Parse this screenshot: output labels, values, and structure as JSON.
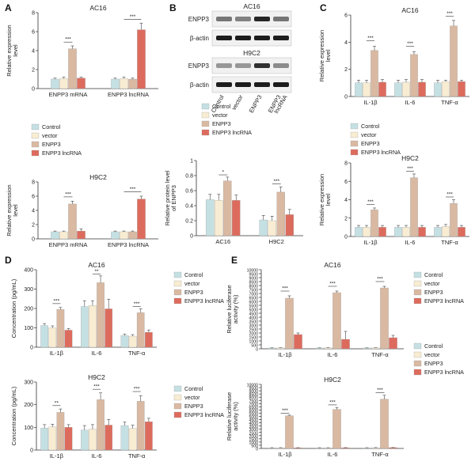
{
  "colors": {
    "control": "#c5e0e3",
    "vector": "#f8ecd2",
    "enpp3": "#d9b9a2",
    "lncrna": "#dd6b5d",
    "blot_bg": "#f1f1f1",
    "band": "#111111"
  },
  "legend": [
    "Control",
    "vector",
    "ENPP3",
    "ENPP3 lncRNA"
  ],
  "panel_B": {
    "label": "B",
    "blot_ac16": {
      "title": "AC16",
      "rows": [
        "ENPP3",
        "β-actin"
      ]
    },
    "blot_h9c2": {
      "title": "H9C2",
      "rows": [
        "ENPP3",
        "β-actin"
      ]
    },
    "lane_labels": [
      "Control",
      "vector",
      "ENPP3",
      "ENPP3 lncRNA"
    ]
  },
  "chart_data": [
    {
      "id": "A1",
      "panel": "A",
      "type": "bar",
      "title": "AC16",
      "ylabel": "Relative expression level",
      "ylim": [
        0,
        8
      ],
      "yticks": [
        0,
        2,
        4,
        6,
        8
      ],
      "categories": [
        "ENPP3 mRNA",
        "ENPP3 lncRNA"
      ],
      "series": [
        {
          "name": "Control",
          "values": [
            1.0,
            1.0
          ],
          "errors": [
            0.1,
            0.1
          ]
        },
        {
          "name": "vector",
          "values": [
            1.05,
            1.05
          ],
          "errors": [
            0.15,
            0.15
          ]
        },
        {
          "name": "ENPP3",
          "values": [
            4.2,
            1.0
          ],
          "errors": [
            0.3,
            0.1
          ]
        },
        {
          "name": "ENPP3 lncRNA",
          "values": [
            1.1,
            6.2
          ],
          "errors": [
            0.1,
            0.7
          ]
        }
      ],
      "annotations": [
        {
          "text": "***",
          "category": 0,
          "from": 1,
          "to": 2,
          "y": 4.9
        },
        {
          "text": "***",
          "category": 1,
          "from": 1,
          "to": 3,
          "y": 7.3
        }
      ]
    },
    {
      "id": "A2",
      "panel": "A",
      "type": "bar",
      "title": "H9C2",
      "ylabel": "Relative expression level",
      "ylim": [
        0,
        8
      ],
      "yticks": [
        0,
        2,
        4,
        6,
        8
      ],
      "categories": [
        "ENPP3 mRNA",
        "ENPP3 lncRNA"
      ],
      "series": [
        {
          "name": "Control",
          "values": [
            1.0,
            1.0
          ],
          "errors": [
            0.1,
            0.1
          ]
        },
        {
          "name": "vector",
          "values": [
            1.0,
            1.0
          ],
          "errors": [
            0.1,
            0.1
          ]
        },
        {
          "name": "ENPP3",
          "values": [
            4.9,
            1.0
          ],
          "errors": [
            0.4,
            0.1
          ]
        },
        {
          "name": "ENPP3 lncRNA",
          "values": [
            1.1,
            5.6
          ],
          "errors": [
            0.3,
            0.4
          ]
        }
      ],
      "annotations": [
        {
          "text": "***",
          "category": 0,
          "from": 1,
          "to": 2,
          "y": 5.9
        },
        {
          "text": "***",
          "category": 1,
          "from": 1,
          "to": 3,
          "y": 6.6
        }
      ]
    },
    {
      "id": "B1",
      "panel": "B",
      "type": "bar",
      "title": "",
      "ylabel": "Relative protein level of ENPP3",
      "ylim": [
        0,
        1.0
      ],
      "yticks": [
        0.0,
        0.2,
        0.4,
        0.6,
        0.8,
        1.0
      ],
      "categories": [
        "AC16",
        "H9C2"
      ],
      "series": [
        {
          "name": "Control",
          "values": [
            0.48,
            0.21
          ],
          "errors": [
            0.07,
            0.06
          ]
        },
        {
          "name": "vector",
          "values": [
            0.47,
            0.2
          ],
          "errors": [
            0.08,
            0.06
          ]
        },
        {
          "name": "ENPP3",
          "values": [
            0.73,
            0.58
          ],
          "errors": [
            0.05,
            0.07
          ]
        },
        {
          "name": "ENPP3 lncRNA",
          "values": [
            0.47,
            0.28
          ],
          "errors": [
            0.07,
            0.07
          ]
        }
      ],
      "annotations": [
        {
          "text": "*",
          "category": 0,
          "from": 1,
          "to": 2,
          "y": 0.81
        },
        {
          "text": "***",
          "category": 1,
          "from": 1,
          "to": 2,
          "y": 0.69
        }
      ]
    },
    {
      "id": "C1",
      "panel": "C",
      "type": "bar",
      "title": "AC16",
      "ylabel": "Relative expression level",
      "ylim": [
        0,
        6
      ],
      "yticks": [
        0,
        2,
        4,
        6
      ],
      "categories": [
        "IL-1β",
        "IL-6",
        "TNF-α"
      ],
      "series": [
        {
          "name": "Control",
          "values": [
            1.0,
            1.0,
            1.0
          ],
          "errors": [
            0.2,
            0.2,
            0.2
          ]
        },
        {
          "name": "vector",
          "values": [
            1.0,
            1.05,
            1.1
          ],
          "errors": [
            0.2,
            0.2,
            0.1
          ]
        },
        {
          "name": "ENPP3",
          "values": [
            3.4,
            3.1,
            5.2
          ],
          "errors": [
            0.3,
            0.2,
            0.4
          ]
        },
        {
          "name": "ENPP3 lncRNA",
          "values": [
            1.05,
            1.05,
            1.1
          ],
          "errors": [
            0.2,
            0.2,
            0.1
          ]
        }
      ],
      "annotations": [
        {
          "text": "***",
          "category": 0,
          "from": 1,
          "to": 2,
          "y": 4.1
        },
        {
          "text": "***",
          "category": 1,
          "from": 1,
          "to": 2,
          "y": 3.7
        },
        {
          "text": "***",
          "category": 2,
          "from": 1,
          "to": 2,
          "y": 5.9
        }
      ]
    },
    {
      "id": "C2",
      "panel": "C",
      "type": "bar",
      "title": "H9C2",
      "ylabel": "Relative expression level",
      "ylim": [
        0,
        8
      ],
      "yticks": [
        0,
        2,
        4,
        6,
        8
      ],
      "categories": [
        "IL-1β",
        "IL-6",
        "TNF-α"
      ],
      "series": [
        {
          "name": "Control",
          "values": [
            1.0,
            1.0,
            1.0
          ],
          "errors": [
            0.2,
            0.2,
            0.2
          ]
        },
        {
          "name": "vector",
          "values": [
            1.0,
            1.0,
            1.1
          ],
          "errors": [
            0.2,
            0.2,
            0.2
          ]
        },
        {
          "name": "ENPP3",
          "values": [
            2.9,
            6.4,
            3.6
          ],
          "errors": [
            0.2,
            0.4,
            0.4
          ]
        },
        {
          "name": "ENPP3 lncRNA",
          "values": [
            1.0,
            1.0,
            1.0
          ],
          "errors": [
            0.2,
            0.2,
            0.2
          ]
        }
      ],
      "annotations": [
        {
          "text": "***",
          "category": 0,
          "from": 1,
          "to": 2,
          "y": 3.5
        },
        {
          "text": "***",
          "category": 1,
          "from": 1,
          "to": 2,
          "y": 7.1
        },
        {
          "text": "***",
          "category": 2,
          "from": 1,
          "to": 2,
          "y": 4.3
        }
      ]
    },
    {
      "id": "D1",
      "panel": "D",
      "type": "bar",
      "title": "AC16",
      "ylabel": "Concentration (pg/mL)",
      "ylim": [
        0,
        400
      ],
      "yticks": [
        0,
        100,
        200,
        300,
        400
      ],
      "categories": [
        "IL-1β",
        "IL-6",
        "TNF-α"
      ],
      "series": [
        {
          "name": "Control",
          "values": [
            112,
            210,
            60
          ],
          "errors": [
            10,
            30,
            8
          ]
        },
        {
          "name": "vector",
          "values": [
            100,
            215,
            57
          ],
          "errors": [
            10,
            25,
            8
          ]
        },
        {
          "name": "ENPP3",
          "values": [
            195,
            333,
            178
          ],
          "errors": [
            10,
            35,
            20
          ]
        },
        {
          "name": "ENPP3 lncRNA",
          "values": [
            88,
            198,
            77
          ],
          "errors": [
            8,
            50,
            12
          ]
        }
      ],
      "annotations": [
        {
          "text": "***",
          "category": 0,
          "from": 1,
          "to": 2,
          "y": 225
        },
        {
          "text": "**",
          "category": 1,
          "from": 1,
          "to": 2,
          "y": 378
        },
        {
          "text": "***",
          "category": 2,
          "from": 1,
          "to": 2,
          "y": 210
        }
      ]
    },
    {
      "id": "D2",
      "panel": "D",
      "type": "bar",
      "title": "H9C2",
      "ylabel": "Concentration (pg/mL)",
      "ylim": [
        0,
        300
      ],
      "yticks": [
        0,
        100,
        200,
        300
      ],
      "categories": [
        "IL-1β",
        "IL-6",
        "TNF-α"
      ],
      "series": [
        {
          "name": "Control",
          "values": [
            97,
            88,
            108
          ],
          "errors": [
            15,
            20,
            15
          ]
        },
        {
          "name": "vector",
          "values": [
            102,
            92,
            95
          ],
          "errors": [
            12,
            20,
            15
          ]
        },
        {
          "name": "ENPP3",
          "values": [
            166,
            222,
            215
          ],
          "errors": [
            15,
            30,
            25
          ]
        },
        {
          "name": "ENPP3 lncRNA",
          "values": [
            100,
            110,
            125
          ],
          "errors": [
            12,
            25,
            15
          ]
        }
      ],
      "annotations": [
        {
          "text": "**",
          "category": 0,
          "from": 1,
          "to": 2,
          "y": 196
        },
        {
          "text": "***",
          "category": 1,
          "from": 1,
          "to": 2,
          "y": 268
        },
        {
          "text": "***",
          "category": 2,
          "from": 1,
          "to": 2,
          "y": 258
        }
      ]
    },
    {
      "id": "E1",
      "panel": "E",
      "type": "bar",
      "title": "AC16",
      "ylabel": "Relative luciferase activity (%)",
      "ylim": [
        0,
        10000
      ],
      "yticks": [
        0,
        500,
        1000,
        1500,
        2000,
        2500,
        3000,
        3500,
        4000,
        4500,
        5000,
        5500,
        6000,
        6500,
        7000,
        7500,
        8000,
        8500,
        9000,
        9500,
        10000
      ],
      "categories": [
        "IL-1β",
        "IL-6",
        "TNF-α"
      ],
      "series": [
        {
          "name": "Control",
          "values": [
            100,
            100,
            100
          ],
          "errors": [
            20,
            20,
            20
          ]
        },
        {
          "name": "vector",
          "values": [
            110,
            120,
            110
          ],
          "errors": [
            20,
            20,
            20
          ]
        },
        {
          "name": "ENPP3",
          "values": [
            6400,
            7100,
            7700
          ],
          "errors": [
            300,
            200,
            200
          ]
        },
        {
          "name": "ENPP3 lncRNA",
          "values": [
            1800,
            1200,
            1400
          ],
          "errors": [
            200,
            1000,
            300
          ]
        }
      ],
      "annotations": [
        {
          "text": "***",
          "category": 0,
          "from": 1,
          "to": 2,
          "y": 7300
        },
        {
          "text": "***",
          "category": 1,
          "from": 1,
          "to": 2,
          "y": 7900
        },
        {
          "text": "***",
          "category": 2,
          "from": 1,
          "to": 2,
          "y": 8500
        }
      ]
    },
    {
      "id": "E2",
      "panel": "E",
      "type": "bar",
      "title": "H9C2",
      "ylabel": "Relative luciferase activity (%)",
      "ylim": [
        0,
        10000
      ],
      "yticks": [
        0,
        500,
        1000,
        1500,
        2000,
        2500,
        3000,
        3500,
        4000,
        4500,
        5000,
        5500,
        6000,
        6500,
        7000,
        7500,
        8000,
        8500,
        9000,
        9500,
        10000
      ],
      "categories": [
        "IL-1β",
        "IL-6",
        "TNF-α"
      ],
      "series": [
        {
          "name": "Control",
          "values": [
            100,
            100,
            100
          ],
          "errors": [
            20,
            20,
            20
          ]
        },
        {
          "name": "vector",
          "values": [
            110,
            100,
            120
          ],
          "errors": [
            20,
            20,
            20
          ]
        },
        {
          "name": "ENPP3",
          "values": [
            5100,
            6100,
            7700
          ],
          "errors": [
            100,
            300,
            600
          ]
        },
        {
          "name": "ENPP3 lncRNA",
          "values": [
            100,
            110,
            130
          ],
          "errors": [
            20,
            20,
            20
          ]
        }
      ],
      "annotations": [
        {
          "text": "***",
          "category": 0,
          "from": 1,
          "to": 2,
          "y": 5500
        },
        {
          "text": "***",
          "category": 1,
          "from": 1,
          "to": 2,
          "y": 6800
        },
        {
          "text": "***",
          "category": 2,
          "from": 1,
          "to": 2,
          "y": 8700
        }
      ]
    }
  ],
  "panel_letters": [
    "A",
    "B",
    "C",
    "D",
    "E"
  ]
}
